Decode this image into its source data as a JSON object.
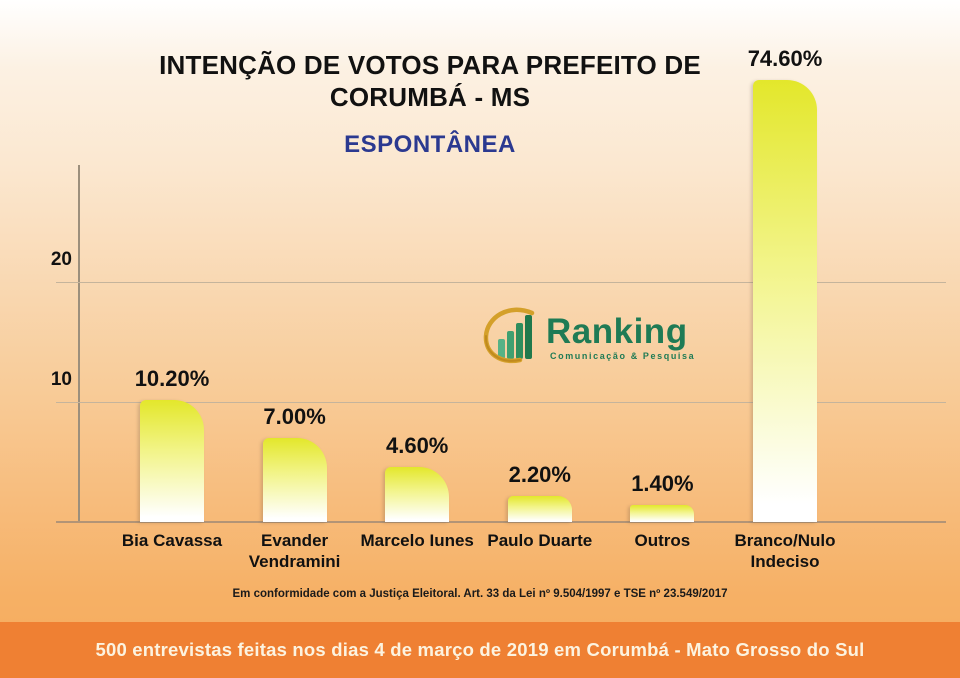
{
  "title": "INTENÇÃO DE VOTOS PARA PREFEITO DE CORUMBÁ - MS",
  "subtitle": "ESPONTÂNEA",
  "logo": {
    "name": "Ranking",
    "tagline": "Comunicação & Pesquisa"
  },
  "disclaimer": "Em conformidade com a Justiça Eleitoral. Art. 33 da Lei nº 9.504/1997 e TSE nº 23.549/2017",
  "footer": "500 entrevistas feitas nos dias 4 de março de 2019 em Corumbá - Mato Grosso do Sul",
  "colors": {
    "title_black": "#111111",
    "subtitle_blue": "#2B3990",
    "bar_yellow": "#E3E72B",
    "bar_yellow_mid": "#F2F489",
    "banner_bg": "#EF8033",
    "banner_text": "#FCF3E0",
    "logo_green": "#1F7B55",
    "logo_gold": "#D4A02A",
    "axis_line": "#9C8F7C",
    "grid_line": "#C5B49C",
    "baseline": "#B29476"
  },
  "chart_data": {
    "type": "bar",
    "categories": [
      "Bia Cavassa",
      "Evander Vendramini",
      "Marcelo Iunes",
      "Paulo Duarte",
      "Outros",
      "Branco/Nulo Indeciso"
    ],
    "values": [
      10.2,
      7.0,
      4.6,
      2.2,
      1.4,
      74.6
    ],
    "value_labels": [
      "10.20%",
      "7.00%",
      "4.60%",
      "2.20%",
      "1.40%",
      "74.60%"
    ],
    "yticks": [
      10,
      20
    ],
    "ylim": [
      0,
      30
    ],
    "xlabel": "",
    "ylabel": "",
    "grid": true,
    "legend": "none",
    "note": "bar for 74.60% is visually clamped to chart height in source image"
  }
}
